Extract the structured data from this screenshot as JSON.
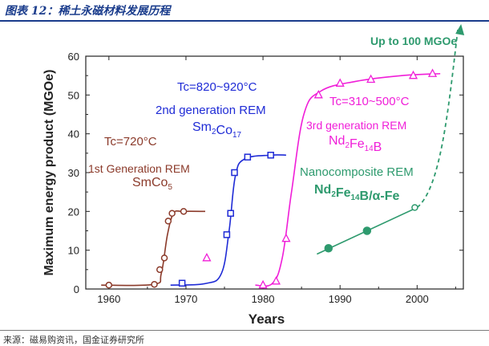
{
  "header": {
    "title": "图表 12：稀土永磁材料发展历程"
  },
  "source": {
    "text": "来源：磁易购资讯，国金证券研究所"
  },
  "colors": {
    "smco5": "#8b3a2a",
    "sm2co17": "#1f2bd6",
    "ndfeb": "#f01ed8",
    "nano": "#2e9a6e",
    "header": "#1a3c8c"
  },
  "chart_data": {
    "type": "line",
    "xlabel": "Years",
    "ylabel": "Maximum energy product (MGOe)",
    "xlim": [
      1957,
      2006
    ],
    "ylim": [
      0,
      60
    ],
    "xticks": [
      1960,
      1970,
      1980,
      1990,
      2000
    ],
    "yticks": [
      0,
      10,
      20,
      30,
      40,
      50,
      60
    ],
    "legend": "none",
    "grid": false,
    "series": [
      {
        "key": "smco5",
        "name": "1st Generation REM SmCo5",
        "marker": "circle",
        "points": [
          [
            1960,
            1
          ],
          [
            1965.9,
            1.2
          ],
          [
            1966.6,
            5
          ],
          [
            1967.2,
            8
          ],
          [
            1967.7,
            17.5
          ],
          [
            1968.2,
            19.5
          ],
          [
            1969.7,
            20
          ]
        ]
      },
      {
        "key": "sm2co17",
        "name": "2nd generation REM Sm2Co17",
        "marker": "square",
        "points": [
          [
            1969.5,
            1.5
          ],
          [
            1975.3,
            14
          ],
          [
            1975.8,
            19.5
          ],
          [
            1976.3,
            30
          ],
          [
            1978,
            34
          ],
          [
            1981,
            34.5
          ]
        ]
      },
      {
        "key": "ndfeb",
        "name": "3rd generation REM Nd2Fe14B",
        "marker": "triangle",
        "points": [
          [
            1972.7,
            8
          ],
          [
            1980,
            1
          ],
          [
            1981.7,
            2
          ],
          [
            1983,
            13
          ],
          [
            1987.2,
            50
          ],
          [
            1990,
            53
          ],
          [
            1994,
            54
          ],
          [
            1999.5,
            55
          ],
          [
            2002,
            55.5
          ]
        ]
      },
      {
        "key": "nano",
        "name": "Nanocomposite REM Nd2Fe14B/α-Fe",
        "marker": "circle",
        "points": [
          [
            1988.5,
            10.5
          ],
          [
            1993.5,
            15
          ],
          [
            1999.7,
            21
          ]
        ],
        "projection_label": "Up to 100 MGOe"
      }
    ],
    "annotations": {
      "tc_smco5": "Tc=720°C",
      "tc_sm2co17": "Tc=820~920°C",
      "tc_ndfeb": "Tc=310~500°C",
      "smco5_gen": "1st Generation REM",
      "smco5_formula": "SmCo5",
      "sm2co17_gen": "2nd generation REM",
      "sm2co17_formula": "Sm2Co17",
      "ndfeb_gen": "3rd generation REM",
      "ndfeb_formula": "Nd2Fe14B",
      "nano_gen": "Nanocomposite REM",
      "nano_formula": "Nd2Fe14B/α-Fe"
    }
  }
}
